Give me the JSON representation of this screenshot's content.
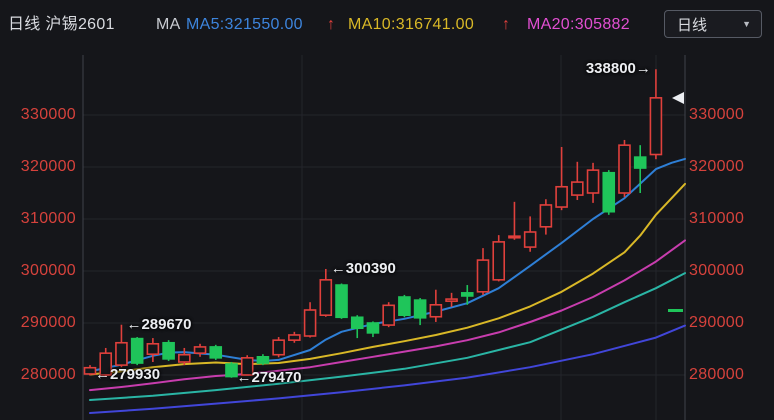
{
  "header": {
    "title": "日线 沪锡2601",
    "ma_label": "MA",
    "ma5_text": "MA5:321550.00",
    "ma5_arrow": "↑",
    "ma10_text": "MA10:316741.00",
    "ma10_arrow": "↑",
    "ma20_text": "MA20:305882",
    "period_button": {
      "label": "日线",
      "caret": "▼"
    }
  },
  "colors": {
    "background": "#15161a",
    "up_red": "#e0403c",
    "down_green": "#1fc55a",
    "ma5_blue": "#2e7fd6",
    "ma10_yellow": "#d9b827",
    "ma20_magenta": "#c83dae",
    "ma_teal": "#2ab5a5",
    "ma_indigo": "#4146d9",
    "axis_text_red": "#d6423c",
    "grid": "#23252b",
    "border": "#3f434b",
    "white_marker": "#eceef2"
  },
  "chart_data": {
    "type": "candlestick",
    "symbol": "沪锡2601",
    "period": "日线",
    "y_axis": {
      "ticks": [
        330000,
        320000,
        310000,
        300000,
        290000,
        280000
      ],
      "visible_range_top": 341500,
      "visible_range_bottom": 271300,
      "grid": true
    },
    "ohlc_order": [
      "open",
      "high",
      "low",
      "close"
    ],
    "candles": [
      [
        280200,
        281900,
        279930,
        281400
      ],
      [
        280000,
        285200,
        279700,
        284200
      ],
      [
        281900,
        289670,
        281500,
        286200
      ],
      [
        287000,
        287300,
        281900,
        282300
      ],
      [
        284000,
        287100,
        282500,
        286000
      ],
      [
        286200,
        286700,
        282700,
        283100
      ],
      [
        282500,
        285200,
        281900,
        283900
      ],
      [
        284200,
        286000,
        283500,
        285400
      ],
      [
        285400,
        285800,
        282900,
        283300
      ],
      [
        282100,
        282500,
        279470,
        279700
      ],
      [
        280000,
        283800,
        279900,
        283300
      ],
      [
        283500,
        284000,
        281900,
        282300
      ],
      [
        283900,
        287300,
        283400,
        286700
      ],
      [
        286700,
        288300,
        286200,
        287700
      ],
      [
        287500,
        294000,
        287200,
        292500
      ],
      [
        291500,
        300390,
        291200,
        298300
      ],
      [
        297300,
        297600,
        290800,
        291100
      ],
      [
        291100,
        291500,
        287100,
        289000
      ],
      [
        290000,
        290300,
        287300,
        288100
      ],
      [
        289600,
        294000,
        289200,
        293400
      ],
      [
        295000,
        295400,
        291100,
        291500
      ],
      [
        294400,
        294800,
        289600,
        291000
      ],
      [
        291200,
        296400,
        290200,
        293500
      ],
      [
        294200,
        295800,
        293100,
        294600
      ],
      [
        295800,
        297300,
        293500,
        295200
      ],
      [
        296000,
        304400,
        295400,
        302100
      ],
      [
        298300,
        306900,
        298000,
        305600
      ],
      [
        306400,
        313300,
        306000,
        306700
      ],
      [
        304600,
        310500,
        303700,
        307500
      ],
      [
        308500,
        313800,
        307000,
        312700
      ],
      [
        312300,
        323850,
        311700,
        316200
      ],
      [
        314600,
        321000,
        313650,
        317100
      ],
      [
        315000,
        320800,
        313100,
        319400
      ],
      [
        318900,
        319400,
        310800,
        311400
      ],
      [
        315000,
        325200,
        314200,
        324200
      ],
      [
        321900,
        324200,
        315000,
        319800
      ],
      [
        322400,
        338800,
        321500,
        333300
      ]
    ],
    "ma_series": [
      {
        "name": "MA60",
        "color": "#4146d9",
        "points": [
          [
            0,
            272700
          ],
          [
            4,
            273500
          ],
          [
            8,
            274500
          ],
          [
            12,
            275500
          ],
          [
            16,
            276700
          ],
          [
            20,
            278000
          ],
          [
            24,
            279500
          ],
          [
            28,
            281500
          ],
          [
            32,
            284000
          ],
          [
            36,
            287200
          ],
          [
            37.85,
            289500
          ]
        ]
      },
      {
        "name": "MA30",
        "color": "#2ab5a5",
        "points": [
          [
            0,
            275200
          ],
          [
            4,
            276000
          ],
          [
            8,
            277100
          ],
          [
            12,
            278300
          ],
          [
            16,
            279700
          ],
          [
            20,
            281200
          ],
          [
            24,
            283300
          ],
          [
            28,
            286300
          ],
          [
            32,
            291200
          ],
          [
            34,
            294000
          ],
          [
            36,
            296700
          ],
          [
            37.85,
            299600
          ]
        ]
      },
      {
        "name": "MA20",
        "color": "#c83dae",
        "points": [
          [
            0,
            277100
          ],
          [
            2,
            277700
          ],
          [
            4,
            278400
          ],
          [
            6,
            279200
          ],
          [
            8,
            279800
          ],
          [
            10,
            280200
          ],
          [
            12,
            280800
          ],
          [
            14,
            281500
          ],
          [
            16,
            282500
          ],
          [
            18,
            283500
          ],
          [
            20,
            284500
          ],
          [
            22,
            285500
          ],
          [
            24,
            286700
          ],
          [
            26,
            288200
          ],
          [
            28,
            290200
          ],
          [
            30,
            292400
          ],
          [
            32,
            295000
          ],
          [
            34,
            298200
          ],
          [
            36,
            301800
          ],
          [
            37.85,
            305882
          ]
        ]
      },
      {
        "name": "MA10",
        "color": "#d9b827",
        "points": [
          [
            0,
            280100
          ],
          [
            2,
            280700
          ],
          [
            4,
            281500
          ],
          [
            6,
            282100
          ],
          [
            8,
            282400
          ],
          [
            10,
            282100
          ],
          [
            12,
            282300
          ],
          [
            14,
            283100
          ],
          [
            16,
            284200
          ],
          [
            18,
            285400
          ],
          [
            20,
            286500
          ],
          [
            22,
            287700
          ],
          [
            24,
            289100
          ],
          [
            26,
            290900
          ],
          [
            28,
            293200
          ],
          [
            30,
            296000
          ],
          [
            32,
            299500
          ],
          [
            34,
            303600
          ],
          [
            35,
            306800
          ],
          [
            36,
            310800
          ],
          [
            37,
            314000
          ],
          [
            37.85,
            316741
          ]
        ]
      },
      {
        "name": "MA5",
        "color": "#2e7fd6",
        "points": [
          [
            0,
            280700
          ],
          [
            2,
            282000
          ],
          [
            4,
            283700
          ],
          [
            5,
            284300
          ],
          [
            6,
            284400
          ],
          [
            8,
            283900
          ],
          [
            10,
            282900
          ],
          [
            11,
            282700
          ],
          [
            12,
            282900
          ],
          [
            14,
            284800
          ],
          [
            15,
            286800
          ],
          [
            16,
            288300
          ],
          [
            18,
            289800
          ],
          [
            20,
            290800
          ],
          [
            22,
            292200
          ],
          [
            24,
            293800
          ],
          [
            26,
            296700
          ],
          [
            28,
            301000
          ],
          [
            30,
            305400
          ],
          [
            32,
            310000
          ],
          [
            34,
            314000
          ],
          [
            36,
            319600
          ],
          [
            37,
            320800
          ],
          [
            37.85,
            321550
          ]
        ]
      }
    ],
    "annotations": [
      {
        "text": "←279930",
        "candle": 0,
        "price": 279930,
        "side": "right"
      },
      {
        "text": "←289670",
        "candle": 2,
        "price": 289670,
        "side": "right"
      },
      {
        "text": "←279470",
        "candle": 9,
        "price": 279470,
        "side": "right"
      },
      {
        "text": "←300390",
        "candle": 15,
        "price": 300390,
        "side": "right"
      },
      {
        "text": "338800→",
        "candle": 36,
        "price": 338800,
        "side": "left"
      }
    ],
    "markers": [
      {
        "type": "triangle-left",
        "price": 333300,
        "color": "#eceef2"
      },
      {
        "type": "dash",
        "price": 292400,
        "color": "#1fc55a"
      }
    ]
  }
}
